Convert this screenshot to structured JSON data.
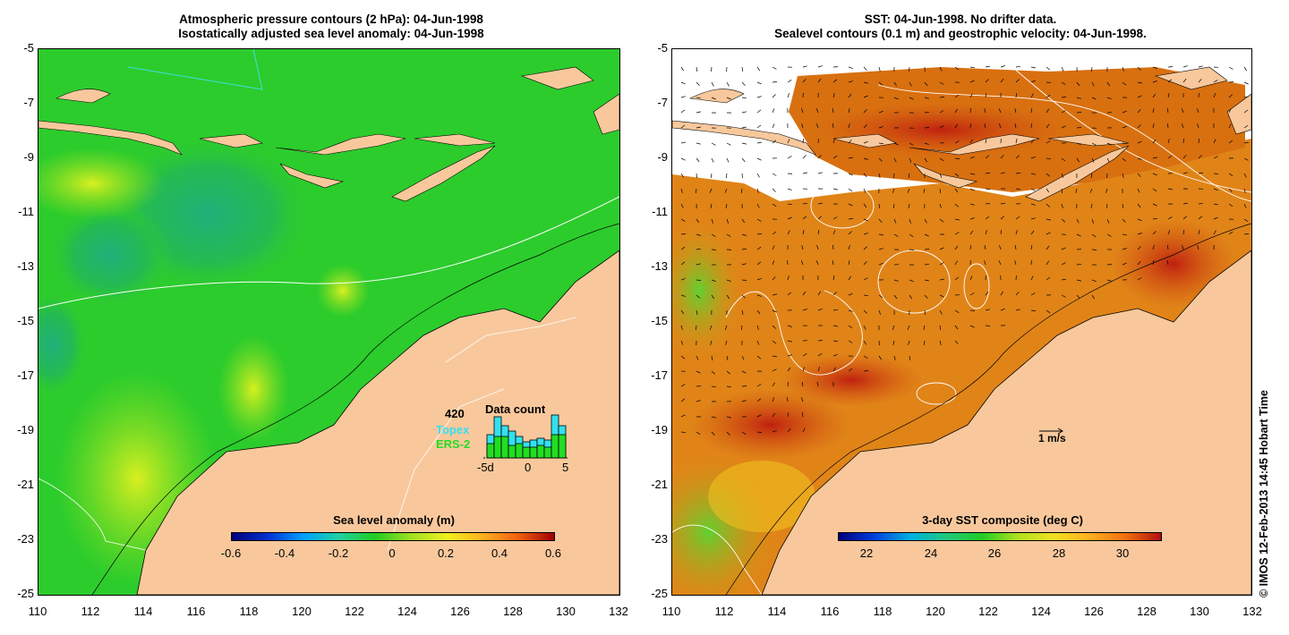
{
  "left_panel": {
    "title_line1": "Atmospheric pressure contours (2 hPa): 04-Jun-1998",
    "title_line2": "Isostatically adjusted sea level anomaly: 04-Jun-1998",
    "colorbar": {
      "title": "Sea level anomaly (m)",
      "ticks": [
        "-0.6",
        "-0.4",
        "-0.2",
        "0",
        "0.2",
        "0.4",
        "0.6"
      ]
    },
    "data_count": {
      "label": "Data count",
      "total": "420",
      "sat1": "Topex",
      "sat2": "ERS-2",
      "axis_ticks": [
        "-5d",
        "0",
        "5"
      ],
      "sat1_color": "#33e0f0",
      "sat2_color": "#22dd22"
    }
  },
  "right_panel": {
    "title_line1": "SST: 04-Jun-1998. No drifter data.",
    "title_line2": "Sealevel contours (0.1 m) and geostrophic velocity: 04-Jun-1998.",
    "velocity_scale_label": "1 m/s",
    "colorbar": {
      "title": "3-day SST composite (deg C)",
      "ticks": [
        "22",
        "24",
        "26",
        "28",
        "30"
      ]
    }
  },
  "axes": {
    "lat_ticks": [
      "-5",
      "-7",
      "-9",
      "-11",
      "-13",
      "-15",
      "-17",
      "-19",
      "-21",
      "-23",
      "-25"
    ],
    "lon_ticks": [
      "110",
      "112",
      "114",
      "116",
      "118",
      "120",
      "122",
      "124",
      "126",
      "128",
      "130",
      "132"
    ]
  },
  "credit": "© IMOS 12-Feb-2013 14:45 Hobart Time",
  "colors": {
    "land": "#f8c89c",
    "ocean_sla": "#22cc22",
    "ocean_sst": "#e07810"
  }
}
